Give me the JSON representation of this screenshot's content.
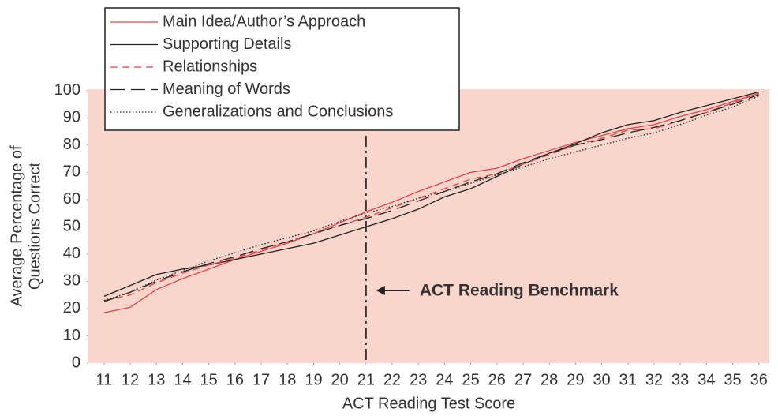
{
  "chart_data": {
    "type": "line",
    "xlabel": "ACT Reading Test Score",
    "ylabel": [
      "Average Percentage of",
      "Questions Correct"
    ],
    "x": [
      11,
      12,
      13,
      14,
      15,
      16,
      17,
      18,
      19,
      20,
      21,
      22,
      23,
      24,
      25,
      26,
      27,
      28,
      29,
      30,
      31,
      32,
      33,
      34,
      35,
      36
    ],
    "xlim": [
      10.4,
      36.4
    ],
    "xticks": [
      11,
      12,
      13,
      14,
      15,
      16,
      17,
      18,
      19,
      20,
      21,
      22,
      23,
      24,
      25,
      26,
      27,
      28,
      29,
      30,
      31,
      32,
      33,
      34,
      35,
      36
    ],
    "ylim": [
      0,
      100.5
    ],
    "yticks": [
      0,
      10,
      20,
      30,
      40,
      50,
      60,
      70,
      80,
      90,
      100
    ],
    "background": "#f9d6cc",
    "legend": "top-left",
    "series": [
      {
        "name": "Main Idea/Author’s Approach",
        "color": "#e8424a",
        "style": "solid",
        "values": [
          18.5,
          20.5,
          27,
          31,
          34.5,
          38,
          41,
          44,
          47.5,
          51.5,
          55.5,
          59,
          63,
          66.5,
          70,
          71.5,
          75,
          78,
          81,
          83.5,
          86,
          87.5,
          90.5,
          93,
          96,
          99
        ]
      },
      {
        "name": "Supporting Details",
        "color": "#222222",
        "style": "solid",
        "values": [
          24.5,
          28.5,
          32.5,
          34.5,
          36,
          38,
          40,
          42,
          44,
          47,
          50,
          53,
          56.5,
          61,
          64,
          68.5,
          73,
          77,
          80.5,
          84.5,
          87.5,
          89,
          92,
          94.5,
          97,
          99.5
        ]
      },
      {
        "name": "Relationships",
        "color": "#e8424a",
        "style": "dashed",
        "values": [
          23,
          25,
          29.5,
          33,
          36,
          38.5,
          41.5,
          44.5,
          47.5,
          50.5,
          53.5,
          57,
          60.5,
          64,
          67.5,
          69.5,
          73,
          76.5,
          80,
          82.5,
          85.5,
          86,
          89,
          92,
          95.5,
          99
        ]
      },
      {
        "name": "Meaning of Words",
        "color": "#222222",
        "style": "longdash",
        "values": [
          22.5,
          26,
          30,
          33.5,
          36.5,
          39,
          42,
          44.5,
          47.5,
          50.5,
          53,
          56,
          59.5,
          63,
          66.5,
          69.5,
          73.5,
          77,
          80,
          82,
          84.5,
          86.5,
          89,
          92,
          95,
          98.5
        ]
      },
      {
        "name": "Generalizations and Conclusions",
        "color": "#222222",
        "style": "dotted",
        "values": [
          23,
          26,
          30.5,
          34,
          37.5,
          40.5,
          43.5,
          46,
          48.5,
          52,
          55,
          57.5,
          60.5,
          63,
          66,
          69,
          72,
          75,
          77.5,
          80,
          82.5,
          84.5,
          87.5,
          91,
          94,
          98
        ]
      }
    ],
    "benchmark": {
      "x": 21,
      "label": "ACT Reading Benchmark",
      "color": "#333333"
    }
  }
}
